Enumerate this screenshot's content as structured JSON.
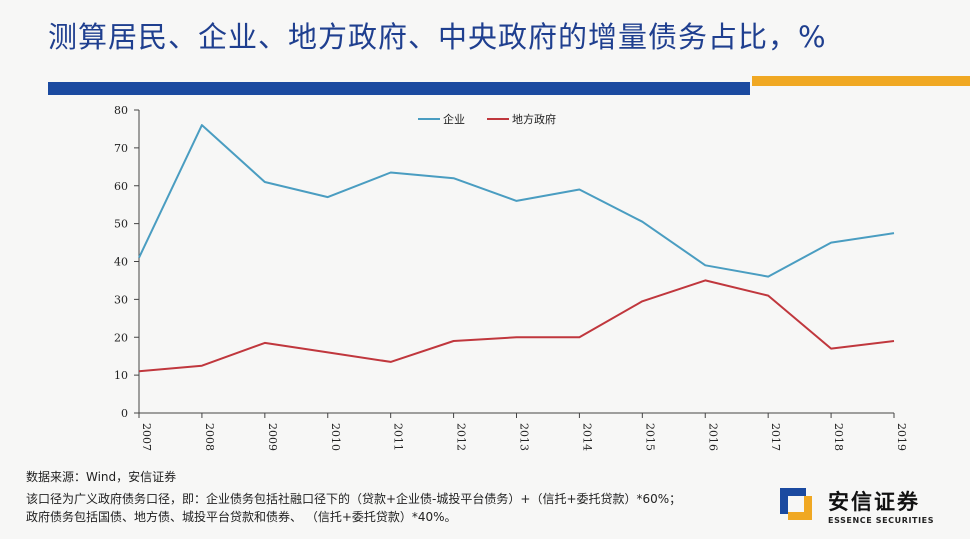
{
  "title": "测算居民、企业、地方政府、中央政府的增量债务占比，%",
  "chart_data": {
    "type": "line",
    "title": "",
    "xlabel": "",
    "ylabel": "",
    "x": [
      "2007",
      "2008",
      "2009",
      "2010",
      "2011",
      "2012",
      "2013",
      "2014",
      "2015",
      "2016",
      "2017",
      "2018",
      "2019"
    ],
    "ylim": [
      0,
      80
    ],
    "yticks": [
      0,
      10,
      20,
      30,
      40,
      50,
      60,
      70,
      80
    ],
    "grid": false,
    "legend_position": "top-center",
    "series": [
      {
        "name": "企业",
        "color": "#4a9dc1",
        "values": [
          41,
          76,
          61,
          57,
          63.5,
          62,
          56,
          59,
          50.5,
          39,
          36,
          45,
          47.5
        ]
      },
      {
        "name": "地方政府",
        "color": "#c0373d",
        "values": [
          11,
          12.5,
          18.5,
          16,
          13.5,
          19,
          20,
          20,
          29.5,
          35,
          31,
          17,
          19
        ]
      }
    ]
  },
  "notes": {
    "source": "数据来源：Wind，安信证券",
    "line1": "该口径为广义政府债务口径，即：企业债务包括社融口径下的（贷款+企业债-城投平台债务）+（信托+委托贷款）*60%；",
    "line2": "政府债务包括国债、地方债、城投平台贷款和债券、 （信托+委托贷款）*40%。"
  },
  "logo": {
    "name": "安信证券",
    "english": "ESSENCE SECURITIES",
    "colors": {
      "blue": "#1b4aa0",
      "orange": "#f0a823"
    }
  }
}
